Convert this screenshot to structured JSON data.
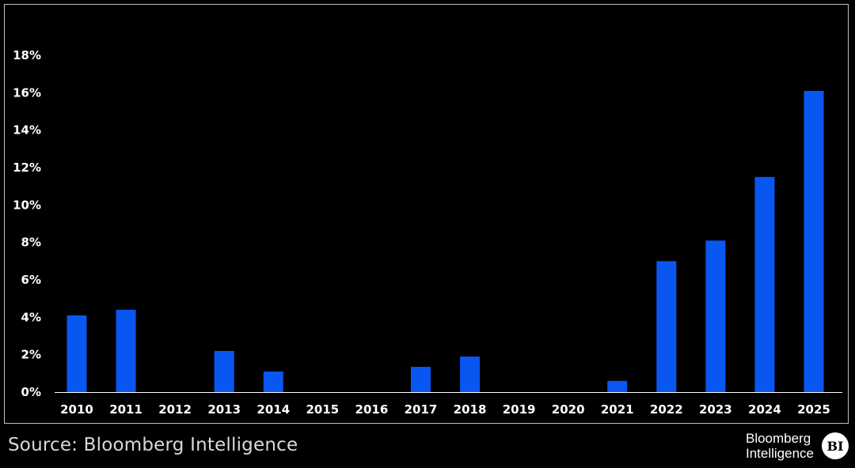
{
  "chart_data": {
    "type": "bar",
    "categories": [
      "2010",
      "2011",
      "2012",
      "2013",
      "2014",
      "2015",
      "2016",
      "2017",
      "2018",
      "2019",
      "2020",
      "2021",
      "2022",
      "2023",
      "2024",
      "2025"
    ],
    "values": [
      4.1,
      4.4,
      0,
      2.2,
      1.1,
      0,
      0,
      1.35,
      1.9,
      0,
      0,
      0.6,
      7.0,
      8.1,
      11.5,
      16.1
    ],
    "yticks": [
      "0%",
      "2%",
      "4%",
      "6%",
      "8%",
      "10%",
      "12%",
      "14%",
      "16%",
      "18%"
    ],
    "ylim": [
      0,
      18
    ],
    "bar_color": "#0a56f0",
    "grid": false,
    "legend": "none",
    "title": "",
    "xlabel": "",
    "ylabel": ""
  },
  "footer": {
    "source": "Source: Bloomberg Intelligence",
    "brand_line1": "Bloomberg",
    "brand_line2": "Intelligence",
    "badge": "BI"
  }
}
